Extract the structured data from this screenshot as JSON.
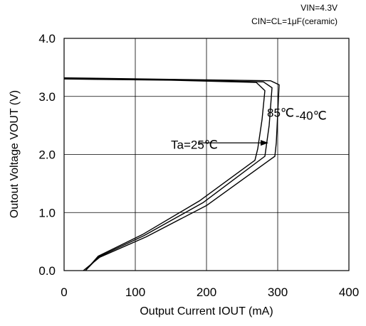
{
  "chart_data": {
    "type": "line",
    "conditions": [
      "VIN=4.3V",
      "CIN=CL=1μF(ceramic)"
    ],
    "xlabel": "Output Current  IOUT  (mA)",
    "ylabel": "Outout Voltage  VOUT  (V)",
    "xlim": [
      0,
      400
    ],
    "ylim": [
      0,
      4
    ],
    "xticks": [
      "0",
      "100",
      "200",
      "300",
      "400"
    ],
    "yticks": [
      "0.0",
      "1.0",
      "2.0",
      "3.0",
      "4.0"
    ],
    "grid": true,
    "series": [
      {
        "name": "85℃",
        "points": [
          [
            0,
            3.3
          ],
          [
            150,
            3.28
          ],
          [
            270,
            3.24
          ],
          [
            282,
            3.1
          ],
          [
            278,
            2.6
          ],
          [
            272,
            2.1
          ],
          [
            268,
            1.9
          ],
          [
            190,
            1.2
          ],
          [
            110,
            0.62
          ],
          [
            48,
            0.25
          ],
          [
            30,
            0
          ]
        ]
      },
      {
        "name": "Ta=25℃",
        "points": [
          [
            0,
            3.31
          ],
          [
            150,
            3.29
          ],
          [
            280,
            3.25
          ],
          [
            292,
            3.15
          ],
          [
            288,
            2.5
          ],
          [
            282,
            1.97
          ],
          [
            195,
            1.17
          ],
          [
            112,
            0.6
          ],
          [
            49,
            0.24
          ],
          [
            30,
            0
          ]
        ]
      },
      {
        "name": "-40℃",
        "points": [
          [
            0,
            3.32
          ],
          [
            290,
            3.27
          ],
          [
            302,
            3.2
          ],
          [
            298,
            2.2
          ],
          [
            296,
            1.97
          ],
          [
            200,
            1.12
          ],
          [
            115,
            0.58
          ],
          [
            50,
            0.23
          ],
          [
            27,
            0
          ]
        ]
      }
    ],
    "annotations": [
      {
        "text": "85℃",
        "x": 285,
        "y": 2.65
      },
      {
        "text": "-40℃",
        "x": 325,
        "y": 2.6
      },
      {
        "text": "Ta=25℃",
        "x": 150,
        "y": 2.1
      }
    ],
    "arrow": {
      "from": [
        188,
        2.2
      ],
      "to": [
        287,
        2.2
      ]
    }
  }
}
